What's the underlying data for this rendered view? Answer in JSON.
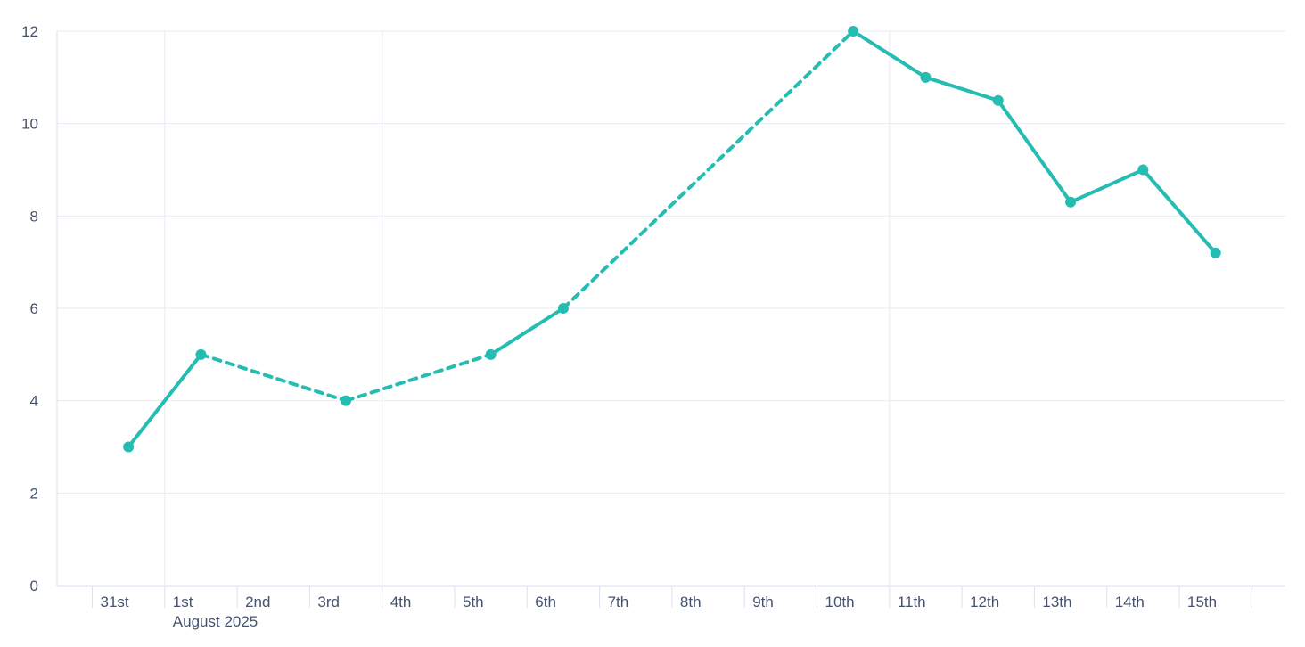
{
  "chart_data": {
    "type": "line",
    "title": "",
    "x_axis": {
      "tick_labels": [
        "31st",
        "1st",
        "2nd",
        "3rd",
        "4th",
        "5th",
        "6th",
        "7th",
        "8th",
        "9th",
        "10th",
        "11th",
        "12th",
        "13th",
        "14th",
        "15th"
      ],
      "month_label": "August 2025",
      "month_label_anchor": "1st",
      "vertical_gridlines_at": [
        "1st",
        "4th",
        "11th"
      ]
    },
    "y_axis": {
      "min": 0,
      "max": 12,
      "step": 2,
      "tick_labels": [
        "0",
        "2",
        "4",
        "6",
        "8",
        "10",
        "12"
      ]
    },
    "series": [
      {
        "name": "values",
        "color": "#25bcb1",
        "marker_color": "#25bcb1",
        "points": [
          {
            "x": "31st",
            "y": 3
          },
          {
            "x": "1st",
            "y": 5
          },
          {
            "x": "3rd",
            "y": 4
          },
          {
            "x": "5th",
            "y": 5
          },
          {
            "x": "6th",
            "y": 6
          },
          {
            "x": "10th",
            "y": 12
          },
          {
            "x": "11th",
            "y": 11
          },
          {
            "x": "12th",
            "y": 10.5
          },
          {
            "x": "13th",
            "y": 8.3
          },
          {
            "x": "14th",
            "y": 9
          },
          {
            "x": "15th",
            "y": 7.2
          }
        ],
        "segment_styles": [
          "solid",
          "dashed",
          "dashed",
          "solid",
          "dashed",
          "solid",
          "solid",
          "solid",
          "solid",
          "solid"
        ]
      }
    ],
    "colors": {
      "line": "#25bcb1",
      "gridline": "#e8ebf3",
      "axis": "#dde1ec",
      "label": "#46536d",
      "background": "#ffffff"
    },
    "layout_hints": {
      "grid": "on",
      "legend": "none",
      "xlim_labels": [
        "31st",
        "15th"
      ],
      "ylim": [
        0,
        12
      ]
    }
  }
}
